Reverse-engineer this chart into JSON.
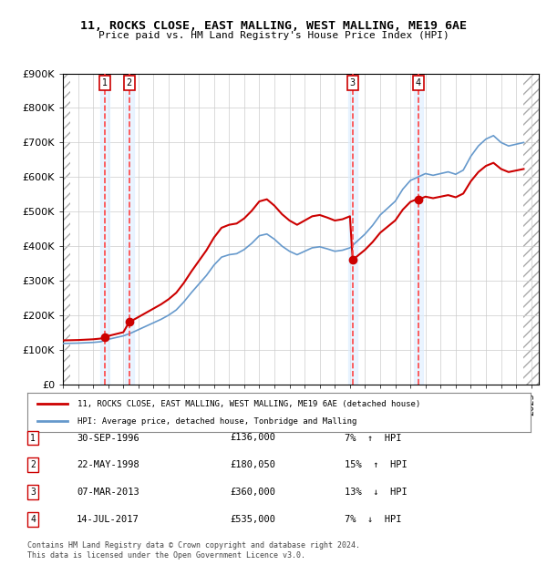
{
  "title": "11, ROCKS CLOSE, EAST MALLING, WEST MALLING, ME19 6AE",
  "subtitle": "Price paid vs. HM Land Registry's House Price Index (HPI)",
  "ylabel": "",
  "xlabel": "",
  "ylim": [
    0,
    900000
  ],
  "yticks": [
    0,
    100000,
    200000,
    300000,
    400000,
    500000,
    600000,
    700000,
    800000,
    900000
  ],
  "ytick_labels": [
    "£0",
    "£100K",
    "£200K",
    "£300K",
    "£400K",
    "£500K",
    "£600K",
    "£700K",
    "£800K",
    "£900K"
  ],
  "xlim_start": 1994.0,
  "xlim_end": 2025.5,
  "transactions": [
    {
      "num": 1,
      "date": "30-SEP-1996",
      "date_decimal": 1996.75,
      "price": 136000,
      "pct": "7%",
      "dir": "↑"
    },
    {
      "num": 2,
      "date": "22-MAY-1998",
      "date_decimal": 1998.39,
      "price": 180050,
      "pct": "15%",
      "dir": "↑"
    },
    {
      "num": 3,
      "date": "07-MAR-2013",
      "date_decimal": 2013.18,
      "price": 360000,
      "pct": "13%",
      "dir": "↓"
    },
    {
      "num": 4,
      "date": "14-JUL-2017",
      "date_decimal": 2017.54,
      "price": 535000,
      "pct": "7%",
      "dir": "↓"
    }
  ],
  "legend_property": "11, ROCKS CLOSE, EAST MALLING, WEST MALLING, ME19 6AE (detached house)",
  "legend_hpi": "HPI: Average price, detached house, Tonbridge and Malling",
  "footer": "Contains HM Land Registry data © Crown copyright and database right 2024.\nThis data is licensed under the Open Government Licence v3.0.",
  "hatch_color": "#c0c0c0",
  "bg_color": "#ffffff",
  "grid_color": "#cccccc",
  "red_line_color": "#cc0000",
  "blue_line_color": "#6699cc",
  "dashed_color": "#ff4444",
  "marker_box_color": "#cc0000",
  "hpi_shadow_color": "#ddeeff"
}
